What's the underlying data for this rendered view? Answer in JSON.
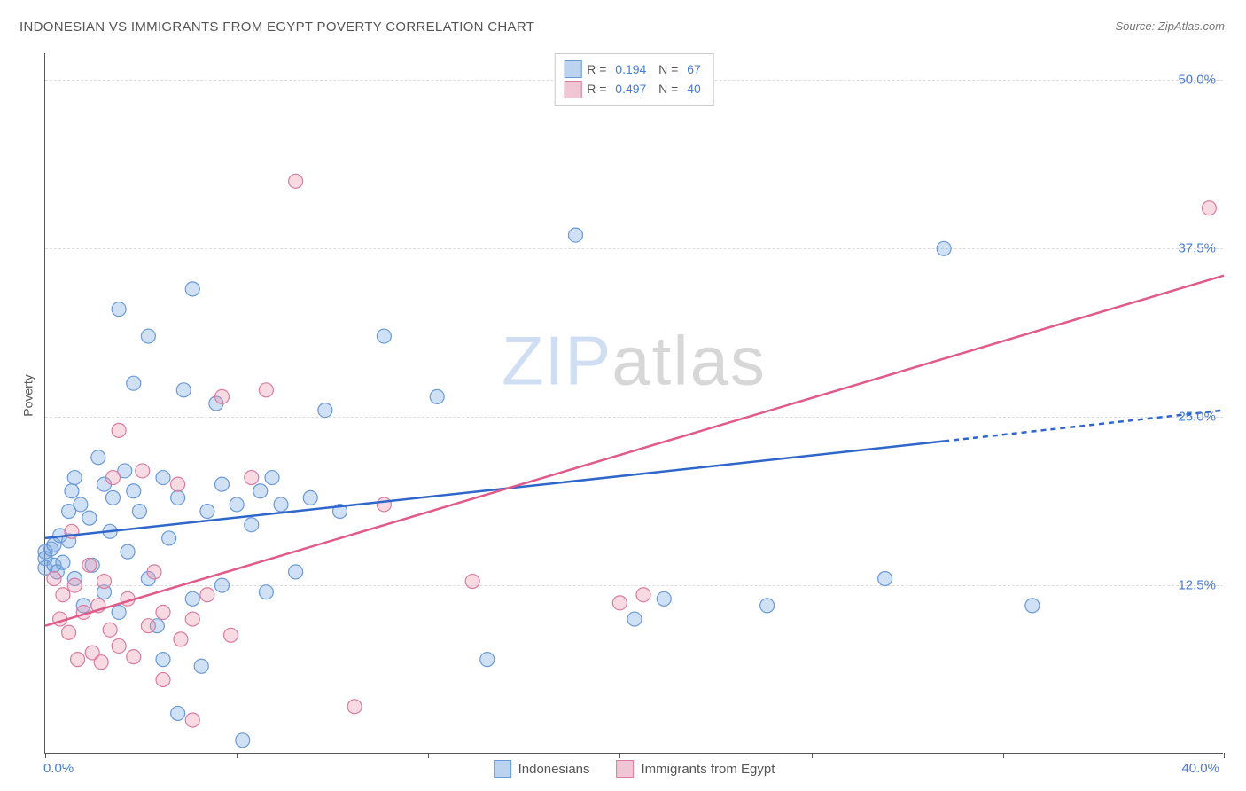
{
  "title": "INDONESIAN VS IMMIGRANTS FROM EGYPT POVERTY CORRELATION CHART",
  "source": "Source: ZipAtlas.com",
  "ylabel": "Poverty",
  "watermark_zip": "ZIP",
  "watermark_atlas": "atlas",
  "chart": {
    "type": "scatter+regression",
    "background_color": "#ffffff",
    "grid_color": "#dddddd",
    "axis_color": "#555555",
    "label_color": "#4a7bd0",
    "xlim": [
      0,
      40
    ],
    "ylim": [
      0,
      52
    ],
    "xtick_positions": [
      0,
      6.5,
      13,
      19.5,
      26,
      32.5,
      40
    ],
    "xtick_labels": {
      "first": "0.0%",
      "last": "40.0%"
    },
    "ytick_positions": [
      12.5,
      25.0,
      37.5,
      50.0
    ],
    "ytick_labels": [
      "12.5%",
      "25.0%",
      "37.5%",
      "50.0%"
    ],
    "marker_radius": 8,
    "marker_stroke_width": 1.2,
    "series": [
      {
        "name": "Indonesians",
        "fill": "rgba(120,165,225,0.35)",
        "stroke": "#6a9ad8",
        "swatch_fill": "#bcd3ef",
        "swatch_stroke": "#6a9ad8",
        "R": "0.194",
        "N": "67",
        "regression": {
          "x1": 0,
          "y1": 16.0,
          "x2": 30.5,
          "y2": 23.2,
          "x2_ext": 40,
          "y2_ext": 25.5,
          "color": "#2f66c9",
          "width": 2.5,
          "dash_ext": "6 5"
        },
        "points": [
          [
            0.0,
            15.0
          ],
          [
            0.0,
            13.8
          ],
          [
            0.0,
            14.5
          ],
          [
            0.2,
            15.2
          ],
          [
            0.3,
            14.0
          ],
          [
            0.3,
            15.5
          ],
          [
            0.4,
            13.5
          ],
          [
            0.5,
            16.2
          ],
          [
            0.6,
            14.2
          ],
          [
            0.8,
            15.8
          ],
          [
            0.8,
            18.0
          ],
          [
            0.9,
            19.5
          ],
          [
            1.0,
            13.0
          ],
          [
            1.0,
            20.5
          ],
          [
            1.2,
            18.5
          ],
          [
            1.3,
            11.0
          ],
          [
            1.5,
            17.5
          ],
          [
            1.6,
            14.0
          ],
          [
            1.8,
            22.0
          ],
          [
            2.0,
            12.0
          ],
          [
            2.0,
            20.0
          ],
          [
            2.2,
            16.5
          ],
          [
            2.3,
            19.0
          ],
          [
            2.5,
            33.0
          ],
          [
            2.5,
            10.5
          ],
          [
            2.7,
            21.0
          ],
          [
            2.8,
            15.0
          ],
          [
            3.0,
            19.5
          ],
          [
            3.0,
            27.5
          ],
          [
            3.2,
            18.0
          ],
          [
            3.5,
            31.0
          ],
          [
            3.5,
            13.0
          ],
          [
            3.8,
            9.5
          ],
          [
            4.0,
            20.5
          ],
          [
            4.0,
            7.0
          ],
          [
            4.2,
            16.0
          ],
          [
            4.5,
            19.0
          ],
          [
            4.5,
            3.0
          ],
          [
            4.7,
            27.0
          ],
          [
            5.0,
            34.5
          ],
          [
            5.0,
            11.5
          ],
          [
            5.3,
            6.5
          ],
          [
            5.5,
            18.0
          ],
          [
            5.8,
            26.0
          ],
          [
            6.0,
            12.5
          ],
          [
            6.0,
            20.0
          ],
          [
            6.5,
            18.5
          ],
          [
            6.7,
            1.0
          ],
          [
            7.0,
            17.0
          ],
          [
            7.3,
            19.5
          ],
          [
            7.5,
            12.0
          ],
          [
            7.7,
            20.5
          ],
          [
            8.0,
            18.5
          ],
          [
            8.5,
            13.5
          ],
          [
            9.0,
            19.0
          ],
          [
            9.5,
            25.5
          ],
          [
            10.0,
            18.0
          ],
          [
            11.5,
            31.0
          ],
          [
            13.3,
            26.5
          ],
          [
            15.0,
            7.0
          ],
          [
            18.0,
            38.5
          ],
          [
            20.0,
            10.0
          ],
          [
            21.0,
            11.5
          ],
          [
            24.5,
            11.0
          ],
          [
            28.5,
            13.0
          ],
          [
            30.5,
            37.5
          ],
          [
            33.5,
            11.0
          ]
        ]
      },
      {
        "name": "Immigrants from Egypt",
        "fill": "rgba(235,150,175,0.35)",
        "stroke": "#d97ca0",
        "swatch_fill": "#f1c6d4",
        "swatch_stroke": "#d97ca0",
        "R": "0.497",
        "N": "40",
        "regression": {
          "x1": 0,
          "y1": 9.5,
          "x2": 40,
          "y2": 35.5,
          "color": "#e05a8a",
          "width": 2.5
        },
        "points": [
          [
            0.3,
            13.0
          ],
          [
            0.5,
            10.0
          ],
          [
            0.6,
            11.8
          ],
          [
            0.8,
            9.0
          ],
          [
            0.9,
            16.5
          ],
          [
            1.0,
            12.5
          ],
          [
            1.1,
            7.0
          ],
          [
            1.3,
            10.5
          ],
          [
            1.5,
            14.0
          ],
          [
            1.6,
            7.5
          ],
          [
            1.8,
            11.0
          ],
          [
            1.9,
            6.8
          ],
          [
            2.0,
            12.8
          ],
          [
            2.2,
            9.2
          ],
          [
            2.3,
            20.5
          ],
          [
            2.5,
            8.0
          ],
          [
            2.5,
            24.0
          ],
          [
            2.8,
            11.5
          ],
          [
            3.0,
            7.2
          ],
          [
            3.3,
            21.0
          ],
          [
            3.5,
            9.5
          ],
          [
            3.7,
            13.5
          ],
          [
            4.0,
            10.5
          ],
          [
            4.0,
            5.5
          ],
          [
            4.5,
            20.0
          ],
          [
            4.6,
            8.5
          ],
          [
            5.0,
            10.0
          ],
          [
            5.0,
            2.5
          ],
          [
            5.5,
            11.8
          ],
          [
            6.0,
            26.5
          ],
          [
            6.3,
            8.8
          ],
          [
            7.0,
            20.5
          ],
          [
            7.5,
            27.0
          ],
          [
            8.5,
            42.5
          ],
          [
            10.5,
            3.5
          ],
          [
            11.5,
            18.5
          ],
          [
            14.5,
            12.8
          ],
          [
            19.5,
            11.2
          ],
          [
            20.3,
            11.8
          ],
          [
            39.5,
            40.5
          ]
        ]
      }
    ],
    "legend_bottom": [
      {
        "label": "Indonesians",
        "fill": "#bcd3ef",
        "stroke": "#6a9ad8"
      },
      {
        "label": "Immigrants from Egypt",
        "fill": "#f1c6d4",
        "stroke": "#d97ca0"
      }
    ]
  }
}
